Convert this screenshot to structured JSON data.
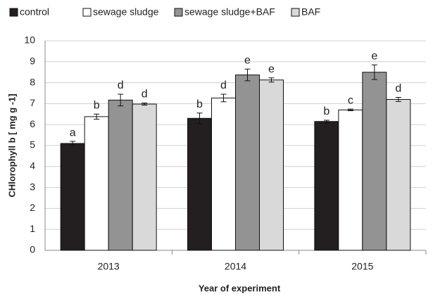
{
  "chart_data": {
    "type": "bar",
    "categories": [
      "2013",
      "2014",
      "2015"
    ],
    "series": [
      {
        "name": "control",
        "color": "#231f20",
        "values": [
          5.1,
          6.3,
          6.15
        ],
        "errors": [
          0.1,
          0.25,
          0.06
        ],
        "letters": [
          "a",
          "b",
          "b"
        ]
      },
      {
        "name": "sewage sludge",
        "color": "#ffffff",
        "values": [
          6.38,
          7.27,
          6.7
        ],
        "errors": [
          0.12,
          0.18,
          0.04
        ],
        "letters": [
          "b",
          "d",
          "c"
        ]
      },
      {
        "name": "sewage sludge+BAF",
        "color": "#939393",
        "values": [
          7.17,
          8.37,
          8.5
        ],
        "errors": [
          0.28,
          0.28,
          0.35
        ],
        "letters": [
          "d",
          "e",
          "e"
        ]
      },
      {
        "name": "BAF",
        "color": "#d9d9d9",
        "values": [
          6.98,
          8.13,
          7.2
        ],
        "errors": [
          0.05,
          0.1,
          0.1
        ],
        "letters": [
          "d",
          "e",
          "d"
        ]
      }
    ],
    "xlabel": "Year of experiment",
    "ylabel": "CHlorophyll b [ mg g -1]",
    "ylim": [
      0,
      10
    ],
    "yticks": [
      0,
      1,
      2,
      3,
      4,
      5,
      6,
      7,
      8,
      9,
      10
    ],
    "grid": true,
    "legend": "top"
  }
}
